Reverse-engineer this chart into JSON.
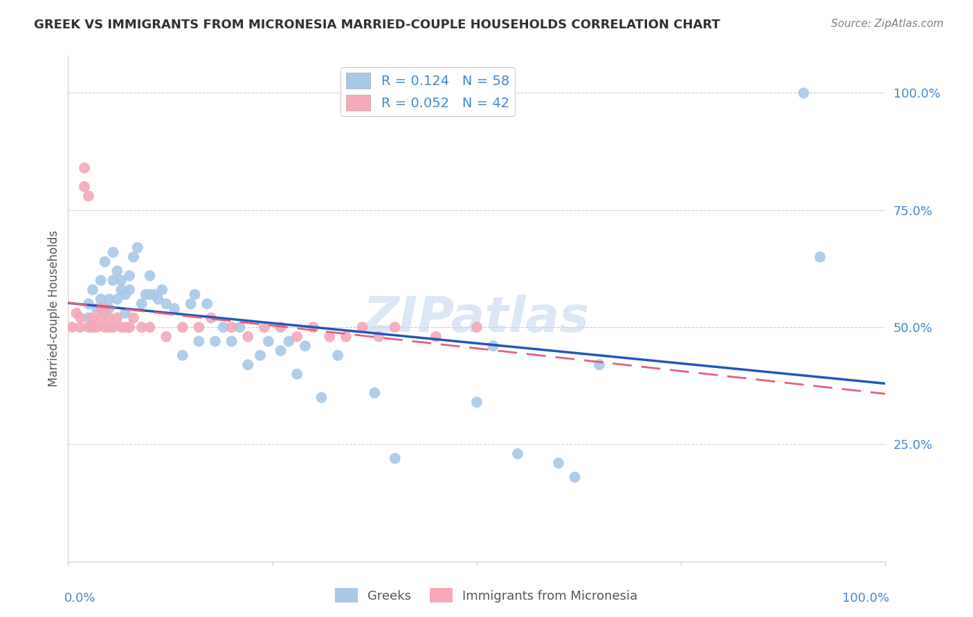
{
  "title": "GREEK VS IMMIGRANTS FROM MICRONESIA MARRIED-COUPLE HOUSEHOLDS CORRELATION CHART",
  "source": "Source: ZipAtlas.com",
  "ylabel": "Married-couple Households",
  "blue_R": 0.124,
  "blue_N": 58,
  "pink_R": 0.052,
  "pink_N": 42,
  "blue_color": "#a8c8e8",
  "pink_color": "#f4a8b8",
  "blue_line_color": "#2255bb",
  "pink_line_color": "#e06080",
  "grid_color": "#cccccc",
  "title_color": "#303030",
  "axis_label_color": "#4488cc",
  "watermark": "ZIPatlas",
  "blue_x": [
    0.025,
    0.025,
    0.03,
    0.035,
    0.04,
    0.04,
    0.045,
    0.05,
    0.05,
    0.055,
    0.055,
    0.06,
    0.06,
    0.065,
    0.065,
    0.07,
    0.07,
    0.075,
    0.075,
    0.08,
    0.085,
    0.09,
    0.095,
    0.1,
    0.1,
    0.105,
    0.11,
    0.115,
    0.12,
    0.13,
    0.14,
    0.15,
    0.155,
    0.16,
    0.17,
    0.18,
    0.19,
    0.2,
    0.21,
    0.22,
    0.235,
    0.245,
    0.26,
    0.27,
    0.28,
    0.29,
    0.31,
    0.33,
    0.375,
    0.4,
    0.5,
    0.52,
    0.55,
    0.6,
    0.62,
    0.65,
    0.9,
    0.92
  ],
  "blue_y": [
    0.55,
    0.52,
    0.58,
    0.54,
    0.6,
    0.56,
    0.64,
    0.54,
    0.56,
    0.6,
    0.66,
    0.56,
    0.62,
    0.58,
    0.6,
    0.57,
    0.53,
    0.61,
    0.58,
    0.65,
    0.67,
    0.55,
    0.57,
    0.61,
    0.57,
    0.57,
    0.56,
    0.58,
    0.55,
    0.54,
    0.44,
    0.55,
    0.57,
    0.47,
    0.55,
    0.47,
    0.5,
    0.47,
    0.5,
    0.42,
    0.44,
    0.47,
    0.45,
    0.47,
    0.4,
    0.46,
    0.35,
    0.44,
    0.36,
    0.22,
    0.34,
    0.46,
    0.23,
    0.21,
    0.18,
    0.42,
    1.0,
    0.65
  ],
  "pink_x": [
    0.005,
    0.01,
    0.015,
    0.015,
    0.02,
    0.02,
    0.025,
    0.025,
    0.03,
    0.03,
    0.035,
    0.04,
    0.04,
    0.045,
    0.045,
    0.05,
    0.05,
    0.055,
    0.06,
    0.065,
    0.07,
    0.075,
    0.08,
    0.09,
    0.1,
    0.12,
    0.14,
    0.16,
    0.175,
    0.2,
    0.22,
    0.24,
    0.26,
    0.28,
    0.3,
    0.32,
    0.34,
    0.36,
    0.38,
    0.4,
    0.45,
    0.5
  ],
  "pink_y": [
    0.5,
    0.53,
    0.5,
    0.52,
    0.8,
    0.84,
    0.78,
    0.5,
    0.5,
    0.52,
    0.5,
    0.54,
    0.52,
    0.5,
    0.54,
    0.5,
    0.52,
    0.5,
    0.52,
    0.5,
    0.5,
    0.5,
    0.52,
    0.5,
    0.5,
    0.48,
    0.5,
    0.5,
    0.52,
    0.5,
    0.48,
    0.5,
    0.5,
    0.48,
    0.5,
    0.48,
    0.48,
    0.5,
    0.48,
    0.5,
    0.48,
    0.5
  ],
  "xlim": [
    0.0,
    1.0
  ],
  "ylim": [
    0.0,
    1.08
  ]
}
